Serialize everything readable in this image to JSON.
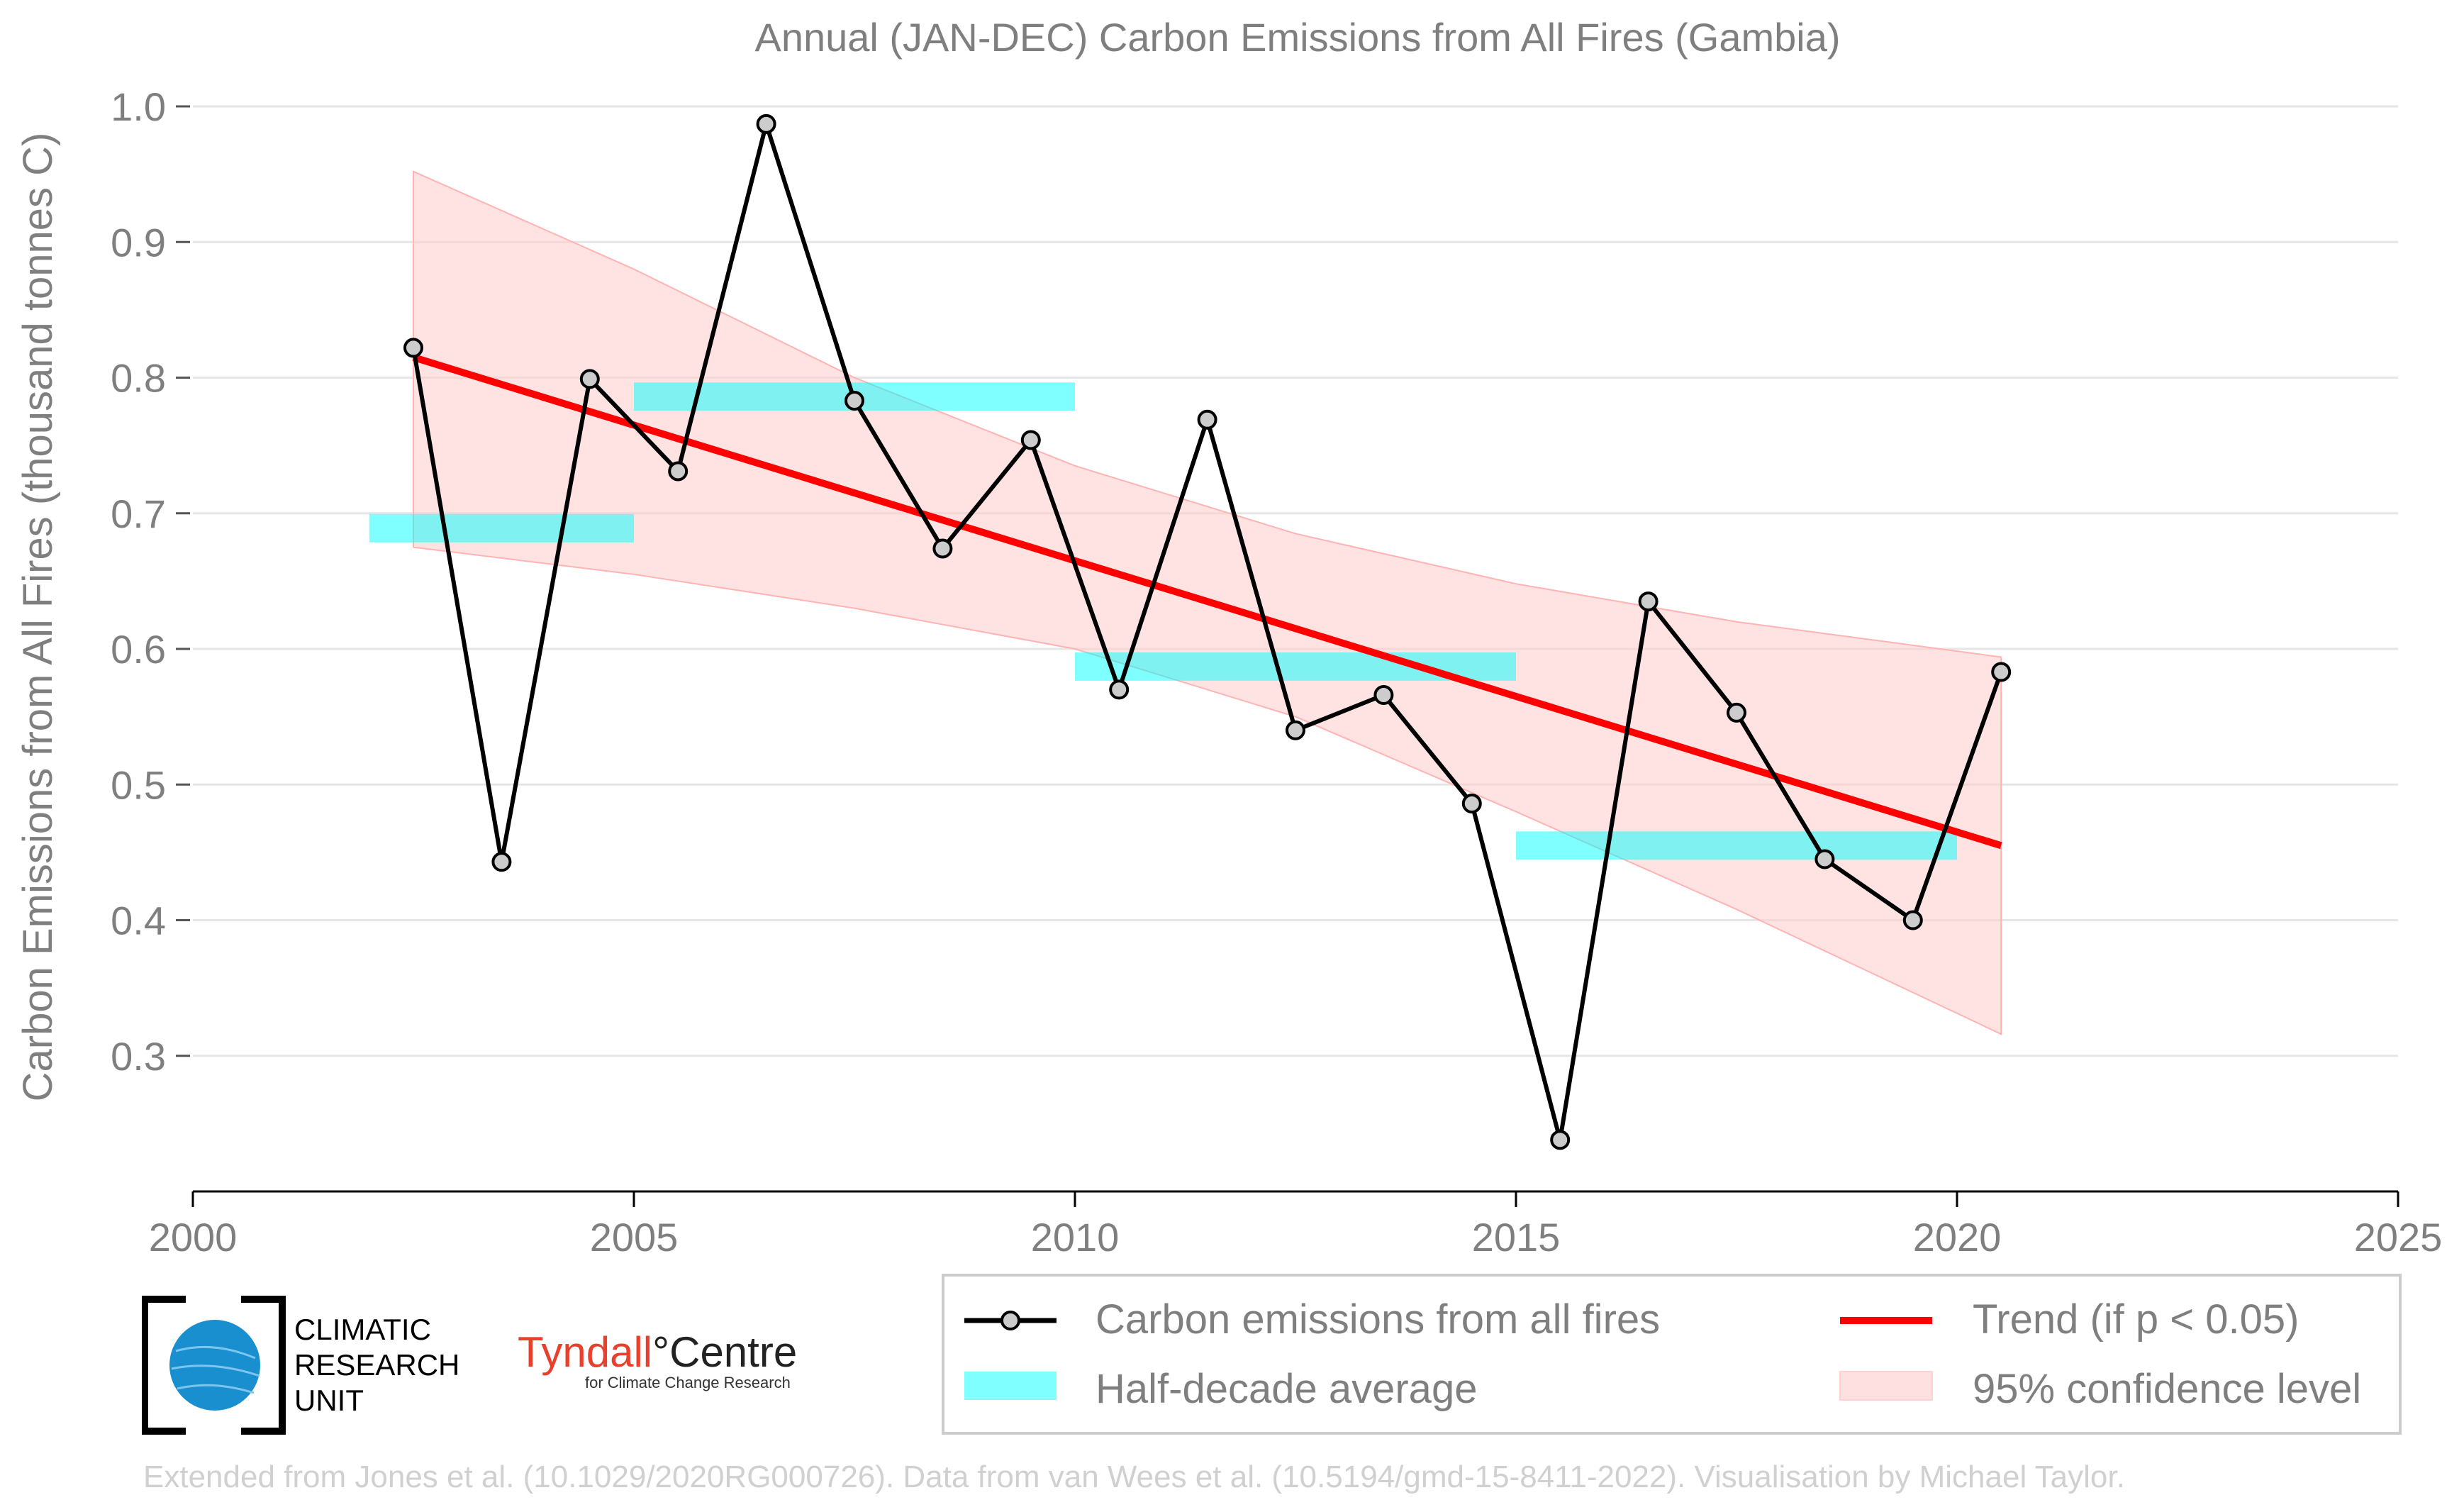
{
  "chart_data": {
    "type": "line",
    "title": "Annual (JAN-DEC) Carbon Emissions from All Fires (Gambia)",
    "ylabel": "Carbon Emissions from All Fires (thousand tonnes C)",
    "xlabel": "",
    "xlim": [
      2000,
      2025
    ],
    "ylim": [
      0.2,
      1.0
    ],
    "x_ticks": [
      "2000",
      "2005",
      "2010",
      "2015",
      "2020",
      "2025"
    ],
    "y_ticks": [
      "0.3",
      "0.4",
      "0.5",
      "0.6",
      "0.7",
      "0.8",
      "0.9",
      "1.0"
    ],
    "grid": "horizontal",
    "legend_position": "bottom-right",
    "series": [
      {
        "name": "Carbon emissions from all fires",
        "x": [
          2002.5,
          2003.5,
          2004.5,
          2005.5,
          2006.5,
          2007.5,
          2008.5,
          2009.5,
          2010.5,
          2011.5,
          2012.5,
          2013.5,
          2014.5,
          2015.5,
          2016.5,
          2017.5,
          2018.5,
          2019.5,
          2020.5
        ],
        "values": [
          0.822,
          0.443,
          0.799,
          0.731,
          0.987,
          0.783,
          0.674,
          0.754,
          0.57,
          0.769,
          0.54,
          0.566,
          0.486,
          0.238,
          0.635,
          0.553,
          0.445,
          0.4,
          0.583
        ],
        "color": "#000000"
      },
      {
        "name": "Half-decade average",
        "segments": [
          {
            "x0": 2002,
            "x1": 2005,
            "value": 0.689
          },
          {
            "x0": 2005,
            "x1": 2010,
            "value": 0.786
          },
          {
            "x0": 2010,
            "x1": 2015,
            "value": 0.587
          },
          {
            "x0": 2015,
            "x1": 2020,
            "value": 0.455
          }
        ],
        "color": "#00ffff"
      },
      {
        "name": "Trend (if p < 0.05)",
        "x": [
          2002.5,
          2020.5
        ],
        "values": [
          0.815,
          0.455
        ],
        "color": "#ff0000"
      },
      {
        "name": "95% confidence level",
        "x": [
          2002.5,
          2005,
          2007.5,
          2010,
          2012.5,
          2015,
          2017.5,
          2020.5
        ],
        "upper": [
          0.952,
          0.88,
          0.8,
          0.735,
          0.685,
          0.648,
          0.62,
          0.594
        ],
        "lower": [
          0.675,
          0.655,
          0.63,
          0.6,
          0.55,
          0.48,
          0.408,
          0.316
        ],
        "color": "#ffcccc"
      }
    ]
  },
  "logos": {
    "cru_line1": "CLIMATIC",
    "cru_line2": "RESEARCH",
    "cru_line3": "UNIT",
    "tyndall_name": "Tyndall",
    "tyndall_degree": "°",
    "tyndall_centre": "Centre",
    "tyndall_sub": "for Climate Change Research"
  },
  "footer": "Extended from Jones et al. (10.1029/2020RG000726). Data from van Wees et al. (10.5194/gmd-15-8411-2022). Visualisation by Michael Taylor."
}
